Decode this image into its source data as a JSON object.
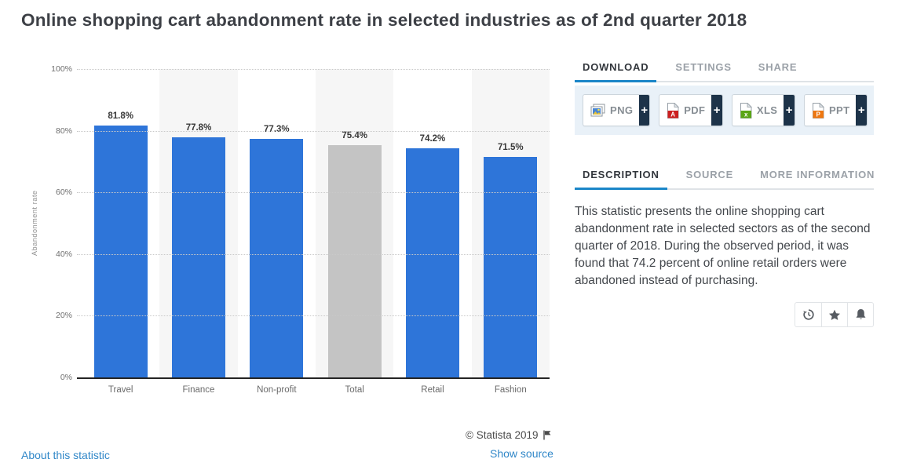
{
  "header": {
    "title": "Online shopping cart abandonment rate in selected industries as of 2nd quarter 2018"
  },
  "chart_data": {
    "type": "bar",
    "title": "Online shopping cart abandonment rate in selected industries as of 2nd quarter 2018",
    "categories": [
      "Travel",
      "Finance",
      "Non-profit",
      "Total",
      "Retail",
      "Fashion"
    ],
    "values": [
      81.8,
      77.8,
      77.3,
      75.4,
      74.2,
      71.5
    ],
    "value_labels": [
      "81.8%",
      "77.8%",
      "77.3%",
      "75.4%",
      "74.2%",
      "71.5%"
    ],
    "xlabel": "",
    "ylabel": "Abandonment rate",
    "ylim": [
      0,
      100
    ],
    "yticks": [
      {
        "value": 0,
        "label": "0%"
      },
      {
        "value": 20,
        "label": "20%"
      },
      {
        "value": 40,
        "label": "40%"
      },
      {
        "value": 60,
        "label": "60%"
      },
      {
        "value": 80,
        "label": "80%"
      },
      {
        "value": 100,
        "label": "100%"
      }
    ],
    "grid": "horizontal-dotted",
    "legend": "none",
    "bar_color": "#2e75d9",
    "muted_bar": {
      "category": "Total",
      "color": "#c4c4c4"
    },
    "striped_categories": [
      "Finance",
      "Total",
      "Fashion"
    ],
    "column_stripe_color": "#f6f6f6"
  },
  "panel": {
    "primary_tabs": [
      {
        "label": "DOWNLOAD",
        "active": true
      },
      {
        "label": "SETTINGS",
        "active": false
      },
      {
        "label": "SHARE",
        "active": false
      }
    ],
    "download_buttons": [
      {
        "label": "PNG",
        "icon": "png-image-icon",
        "plus_label": "+"
      },
      {
        "label": "PDF",
        "icon": "pdf-file-icon",
        "plus_label": "+"
      },
      {
        "label": "XLS",
        "icon": "xls-file-icon",
        "plus_label": "+"
      },
      {
        "label": "PPT",
        "icon": "ppt-file-icon",
        "plus_label": "+"
      }
    ],
    "secondary_tabs": [
      {
        "label": "DESCRIPTION",
        "active": true
      },
      {
        "label": "SOURCE",
        "active": false
      },
      {
        "label": "MORE INFORMATION",
        "active": false
      }
    ],
    "description": "This statistic presents the online shopping cart abandonment rate in selected sectors as of the second quarter of 2018. During the observed period, it was found that 74.2 percent of online retail orders were abandoned instead of purchasing.",
    "action_buttons": [
      {
        "name": "history-icon"
      },
      {
        "name": "star-icon"
      },
      {
        "name": "bell-icon"
      }
    ]
  },
  "footer": {
    "copyright": "© Statista 2019",
    "about_link": "About this statistic",
    "source_link": "Show source"
  },
  "colors": {
    "accent_tab_blue": "#1b86c8",
    "link_blue": "#3087c8",
    "bar_blue": "#2e75d9",
    "muted_gray": "#c4c4c4",
    "plus_navy": "#1d3349",
    "strip_background": "#e9f1f8"
  }
}
